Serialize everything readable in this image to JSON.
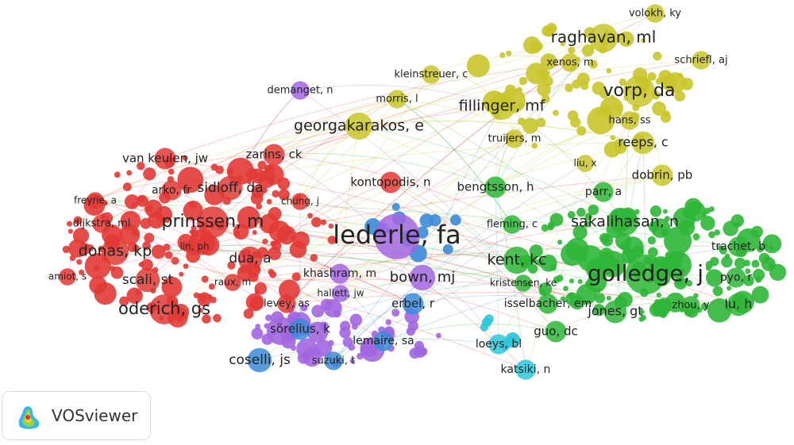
{
  "clusters": [
    {
      "color": "#e23a36",
      "nodes": [
        {
          "label": "van keulen, jw"
        },
        {
          "label": "zarins, ck"
        },
        {
          "label": "arko, fr"
        },
        {
          "label": "sidloff, da"
        },
        {
          "label": "freyrie, a"
        },
        {
          "label": "chung, j"
        },
        {
          "label": "dijkstra, ml"
        },
        {
          "label": "prinssen, m"
        },
        {
          "label": "lin, ph"
        },
        {
          "label": "donas, kp"
        },
        {
          "label": "dua, a"
        },
        {
          "label": "amiot, s"
        },
        {
          "label": "scali, st"
        },
        {
          "label": "raux, m"
        },
        {
          "label": "oderich, gs"
        },
        {
          "label": "levey, as"
        },
        {
          "label": "kontopodis, n"
        }
      ]
    },
    {
      "color": "#c9c52c",
      "nodes": [
        {
          "label": "volokh, ky"
        },
        {
          "label": "raghavan, ml"
        },
        {
          "label": "kleinstreuer, c"
        },
        {
          "label": "xenos, m"
        },
        {
          "label": "schriefl, aj"
        },
        {
          "label": "morris, l"
        },
        {
          "label": "fillinger, mf"
        },
        {
          "label": "vorp, da"
        },
        {
          "label": "georgakarakos, e"
        },
        {
          "label": "hans, ss"
        },
        {
          "label": "truijers, m"
        },
        {
          "label": "reeps, c"
        },
        {
          "label": "liu, x"
        },
        {
          "label": "dobrin, pb"
        }
      ]
    },
    {
      "color": "#2fb638",
      "nodes": [
        {
          "label": "bengtsson, h"
        },
        {
          "label": "parr, a"
        },
        {
          "label": "sakalihasan, n"
        },
        {
          "label": "fleming, c"
        },
        {
          "label": "trachet, b"
        },
        {
          "label": "kent, kc"
        },
        {
          "label": "golledge, j"
        },
        {
          "label": "kristensen, ke"
        },
        {
          "label": "pyo, r"
        },
        {
          "label": "isselbacher, em"
        },
        {
          "label": "jones, gt"
        },
        {
          "label": "zhou, y"
        },
        {
          "label": "lu, h"
        },
        {
          "label": "guo, dc"
        }
      ]
    },
    {
      "color": "#a267e0",
      "nodes": [
        {
          "label": "demanget, n"
        },
        {
          "label": "lederle, fa"
        },
        {
          "label": "khashram, m"
        },
        {
          "label": "bown, mj"
        },
        {
          "label": "hallett, jw"
        }
      ]
    },
    {
      "color": "#3b8bd8",
      "nodes": [
        {
          "label": "erbel, r"
        },
        {
          "label": "sörelius, k"
        },
        {
          "label": "lemaire, sa"
        },
        {
          "label": "coselli, js"
        },
        {
          "label": "suzuki, t"
        }
      ]
    },
    {
      "color": "#2fc6dc",
      "nodes": [
        {
          "label": "loeys, bl"
        },
        {
          "label": "katsiki, n"
        }
      ]
    }
  ],
  "logo": {
    "text": "VOSviewer"
  }
}
